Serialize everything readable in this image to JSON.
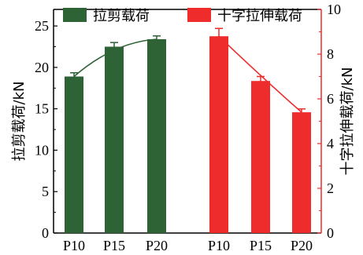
{
  "chart_data": {
    "type": "bar",
    "categories_left": [
      "P10",
      "P15",
      "P20"
    ],
    "categories_right": [
      "P10",
      "P15",
      "P20"
    ],
    "series": [
      {
        "name": "拉剪载荷",
        "axis": "left",
        "color": "#2e6336",
        "values": [
          18.9,
          22.5,
          23.4
        ],
        "errors": [
          0.45,
          0.5,
          0.4
        ],
        "trend_line": true
      },
      {
        "name": "十字拉伸载荷",
        "axis": "right",
        "color": "#ee2c2c",
        "values": [
          8.8,
          6.8,
          5.4
        ],
        "errors": [
          0.35,
          0.2,
          0.15
        ],
        "trend_line": true
      }
    ],
    "ylabel_left": "拉剪载荷/kN",
    "ylabel_right": "十字拉伸载荷/kN",
    "ylim_left": [
      0,
      27
    ],
    "ylim_right": [
      0,
      10
    ],
    "yticks_left": [
      "0",
      "5",
      "10",
      "15",
      "20",
      "25"
    ],
    "yticks_right": [
      "0",
      "2",
      "4",
      "6",
      "8",
      "10"
    ],
    "grid": false,
    "legend_placement": "top",
    "right_axis_color": "#ee2c2c"
  }
}
